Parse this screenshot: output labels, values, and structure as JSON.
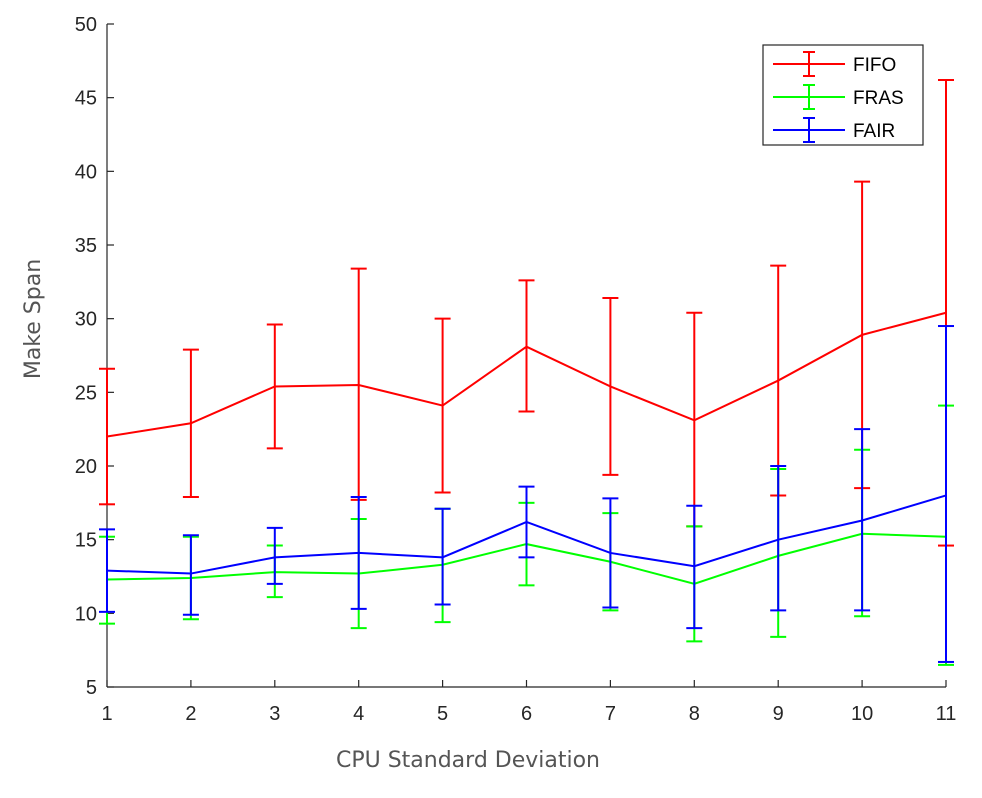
{
  "chart_data": {
    "type": "line",
    "title": "",
    "xlabel": "CPU Standard Deviation",
    "ylabel": "Make Span",
    "xlim": [
      1,
      11
    ],
    "ylim": [
      5,
      50
    ],
    "xticks": [
      1,
      2,
      3,
      4,
      5,
      6,
      7,
      8,
      9,
      10,
      11
    ],
    "yticks": [
      5,
      10,
      15,
      20,
      25,
      30,
      35,
      40,
      45,
      50
    ],
    "grid": false,
    "legend_position": "top-right",
    "x": [
      1,
      2,
      3,
      4,
      5,
      6,
      7,
      8,
      9,
      10,
      11
    ],
    "series": [
      {
        "name": "FIFO",
        "color": "#ff0000",
        "values": [
          22.0,
          22.9,
          25.4,
          25.5,
          24.1,
          28.1,
          25.4,
          23.1,
          25.8,
          28.9,
          30.4
        ],
        "lower": [
          17.4,
          17.9,
          21.2,
          17.7,
          18.2,
          23.7,
          19.4,
          15.9,
          18.0,
          18.5,
          14.6
        ],
        "upper": [
          26.6,
          27.9,
          29.6,
          33.4,
          30.0,
          32.6,
          31.4,
          30.4,
          33.6,
          39.3,
          46.2
        ]
      },
      {
        "name": "FRAS",
        "color": "#00ff00",
        "values": [
          12.3,
          12.4,
          12.8,
          12.7,
          13.3,
          14.7,
          13.5,
          12.0,
          13.9,
          15.4,
          15.2
        ],
        "lower": [
          9.3,
          9.6,
          11.1,
          9.0,
          9.4,
          11.9,
          10.2,
          8.1,
          8.4,
          9.8,
          6.5
        ],
        "upper": [
          15.2,
          15.2,
          14.6,
          16.4,
          17.1,
          17.5,
          16.8,
          15.9,
          19.8,
          21.1,
          24.1
        ]
      },
      {
        "name": "FAIR",
        "color": "#0000ff",
        "values": [
          12.9,
          12.7,
          13.8,
          14.1,
          13.8,
          16.2,
          14.1,
          13.2,
          15.0,
          16.3,
          18.0
        ],
        "lower": [
          10.1,
          9.9,
          12.0,
          10.3,
          10.6,
          13.8,
          10.4,
          9.0,
          10.2,
          10.2,
          6.7
        ],
        "upper": [
          15.7,
          15.3,
          15.8,
          17.9,
          17.1,
          18.6,
          17.8,
          17.3,
          20.0,
          22.5,
          29.5
        ]
      }
    ]
  }
}
